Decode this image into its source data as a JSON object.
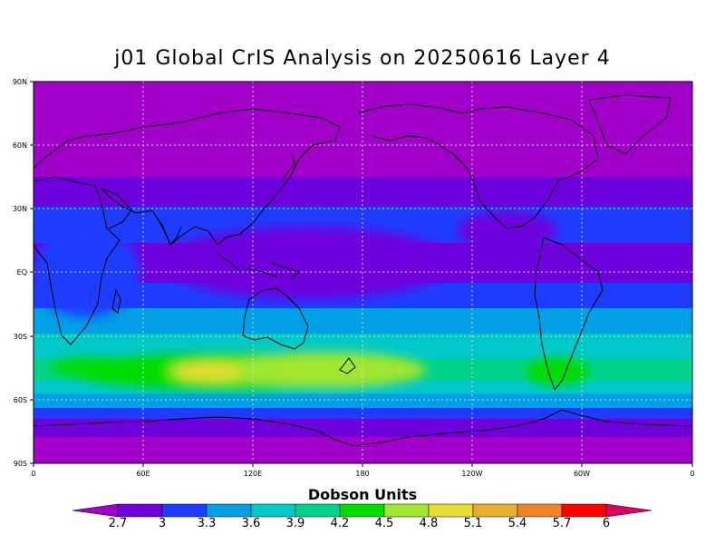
{
  "title": "j01 Global CrIS Analysis on 20250616 Layer 4",
  "lat_labels": [
    "90N",
    "60N",
    "30N",
    "EQ",
    "30S",
    "60S",
    "90S"
  ],
  "lon_labels": [
    "0",
    "60E",
    "120E",
    "180",
    "120W",
    "60W",
    "0"
  ],
  "colorbar": {
    "title": "Dobson Units",
    "labels": [
      "2.7",
      "3",
      "3.3",
      "3.6",
      "3.9",
      "4.2",
      "4.5",
      "4.8",
      "5.1",
      "5.4",
      "5.7",
      "6"
    ],
    "colors": [
      "#a000c8",
      "#6e00dc",
      "#1e3cff",
      "#00a0e6",
      "#00c8c8",
      "#00d28c",
      "#00dc00",
      "#a0e632",
      "#e6dc32",
      "#e6af2d",
      "#f08228",
      "#fa0000",
      "#dc0064"
    ]
  }
}
